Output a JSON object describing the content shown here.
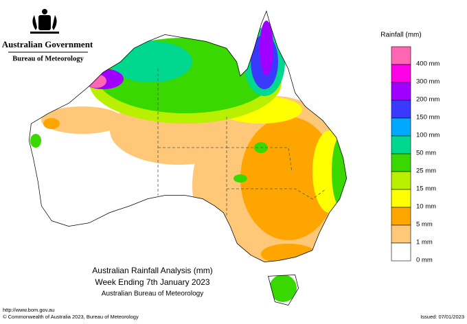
{
  "header": {
    "agency": "Australian Government",
    "bureau": "Bureau of Meteorology"
  },
  "map": {
    "title": "Australian Rainfall Analysis (mm)",
    "subtitle": "Week Ending 7th January 2023",
    "source": "Australian Bureau of Meteorology"
  },
  "legend": {
    "title": "Rainfall (mm)",
    "items": [
      {
        "label": "400 mm",
        "color": "#ff66b3"
      },
      {
        "label": "300 mm",
        "color": "#ff00e6"
      },
      {
        "label": "200 mm",
        "color": "#a000ff"
      },
      {
        "label": "150 mm",
        "color": "#3a3aff"
      },
      {
        "label": "100 mm",
        "color": "#00a8ff"
      },
      {
        "label": "50 mm",
        "color": "#00d890"
      },
      {
        "label": "25 mm",
        "color": "#38d800"
      },
      {
        "label": "15 mm",
        "color": "#b8f000"
      },
      {
        "label": "10 mm",
        "color": "#ffff00"
      },
      {
        "label": "5 mm",
        "color": "#ffa500"
      },
      {
        "label": "1 mm",
        "color": "#ffc878"
      },
      {
        "label": "0 mm",
        "color": "#ffffff"
      }
    ]
  },
  "footer": {
    "url": "http://www.bom.gov.au",
    "copyright": "© Commonwealth of Australia 2023, Bureau of Meteorology",
    "issued": "Issued: 07/01/2023"
  }
}
